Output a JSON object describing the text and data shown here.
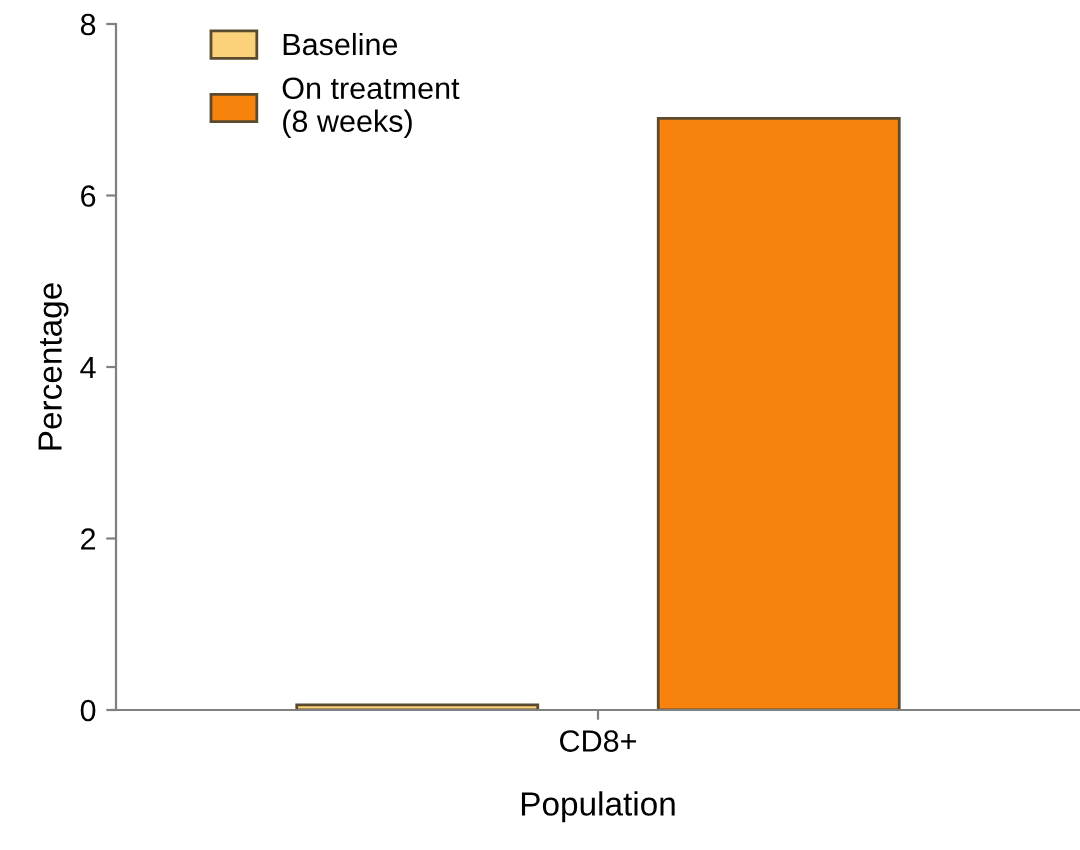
{
  "chart_data": {
    "type": "bar",
    "xlabel": "Population",
    "ylabel": "Percentage",
    "categories": [
      "CD8+"
    ],
    "series": [
      {
        "name": "Baseline",
        "color": "#fbd27a",
        "values": [
          0.06
        ]
      },
      {
        "name": "On treatment\n(8 weeks)",
        "color": "#f7820c",
        "values": [
          6.9
        ]
      }
    ],
    "ylim": [
      0,
      8
    ],
    "yticks": [
      0,
      2,
      4,
      6,
      8
    ],
    "grid": false,
    "legend": "top left"
  }
}
